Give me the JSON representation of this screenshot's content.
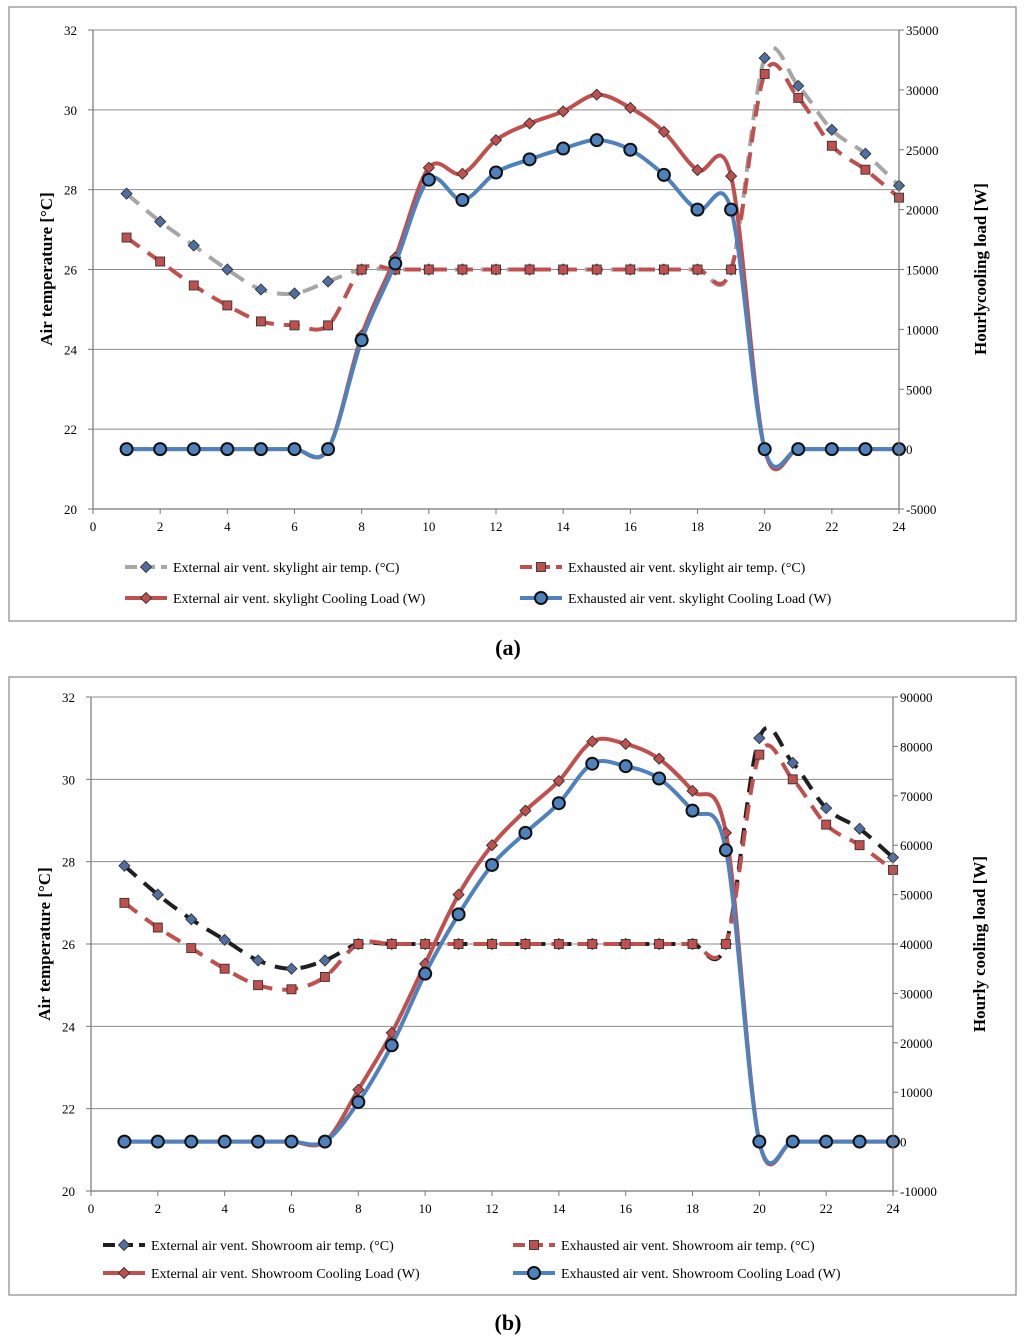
{
  "chart_data": [
    {
      "type": "line",
      "caption": "(a)",
      "ylabel": "Air temperature [°C]",
      "y2label": "Hourlycooling  load [W]",
      "xlim": [
        0,
        24
      ],
      "xticks": [
        0,
        2,
        4,
        6,
        8,
        10,
        12,
        14,
        16,
        18,
        20,
        22,
        24
      ],
      "ylim": [
        20,
        32
      ],
      "yticks": [
        20,
        22,
        24,
        26,
        28,
        30,
        32
      ],
      "y2lim": [
        -5000,
        35000
      ],
      "y2ticks": [
        -5000,
        0,
        5000,
        10000,
        15000,
        20000,
        25000,
        30000,
        35000
      ],
      "grid": "horizontal",
      "legend_position": "bottom",
      "x": [
        1,
        2,
        3,
        4,
        5,
        6,
        7,
        8,
        9,
        10,
        11,
        12,
        13,
        14,
        15,
        16,
        17,
        18,
        19,
        20,
        21,
        22,
        23,
        24
      ],
      "series": [
        {
          "name": "External air vent. skylight air temp. (°C)",
          "axis": "left",
          "color": "#a6a6a6",
          "marker": "diamond",
          "marker_color": "#4f6fa3",
          "dash": true,
          "values": [
            27.9,
            27.2,
            26.6,
            26.0,
            25.5,
            25.4,
            25.7,
            26.0,
            26.0,
            26.0,
            26.0,
            26.0,
            26.0,
            26.0,
            26.0,
            26.0,
            26.0,
            26.0,
            26.0,
            31.3,
            30.6,
            29.5,
            28.9,
            28.1
          ]
        },
        {
          "name": "Exhausted air vent. skylight air temp. (°C)",
          "axis": "left",
          "color": "#c0504d",
          "marker": "square",
          "marker_color": "#c0504d",
          "dash": true,
          "values": [
            26.8,
            26.2,
            25.6,
            25.1,
            24.7,
            24.6,
            24.6,
            26.0,
            26.0,
            26.0,
            26.0,
            26.0,
            26.0,
            26.0,
            26.0,
            26.0,
            26.0,
            26.0,
            26.0,
            30.9,
            30.3,
            29.1,
            28.5,
            27.8
          ]
        },
        {
          "name": "External air vent. skylight Cooling Load (W)",
          "axis": "right",
          "color": "#c0504d",
          "marker": "diamond",
          "marker_color": "#c0504d",
          "dash": false,
          "values": [
            0,
            0,
            0,
            0,
            0,
            0,
            0,
            9500,
            16000,
            23500,
            23000,
            25800,
            27200,
            28200,
            29600,
            28500,
            26500,
            23300,
            22800,
            0,
            0,
            0,
            0,
            0
          ]
        },
        {
          "name": "Exhausted air vent. skylight Cooling Load (W)",
          "axis": "right",
          "color": "#4f81bd",
          "marker": "circle",
          "marker_color": "#4f81bd",
          "dash": false,
          "values": [
            0,
            0,
            0,
            0,
            0,
            0,
            0,
            9100,
            15500,
            22500,
            20800,
            23100,
            24200,
            25100,
            25800,
            25000,
            22900,
            20000,
            20000,
            0,
            0,
            0,
            0,
            0
          ]
        }
      ]
    },
    {
      "type": "line",
      "caption": "(b)",
      "ylabel": "Air temperature [°C]",
      "y2label": "Hourly cooling load [W]",
      "xlim": [
        0,
        24
      ],
      "xticks": [
        0,
        2,
        4,
        6,
        8,
        10,
        12,
        14,
        16,
        18,
        20,
        22,
        24
      ],
      "ylim": [
        20,
        32
      ],
      "yticks": [
        20,
        22,
        24,
        26,
        28,
        30,
        32
      ],
      "y2lim": [
        -10000,
        90000
      ],
      "y2ticks": [
        -10000,
        0,
        10000,
        20000,
        30000,
        40000,
        50000,
        60000,
        70000,
        80000,
        90000
      ],
      "grid": "horizontal",
      "legend_position": "bottom",
      "x": [
        1,
        2,
        3,
        4,
        5,
        6,
        7,
        8,
        9,
        10,
        11,
        12,
        13,
        14,
        15,
        16,
        17,
        18,
        19,
        20,
        21,
        22,
        23,
        24
      ],
      "series": [
        {
          "name": "External air vent. Showroom air temp. (°C)",
          "axis": "left",
          "color": "#1f1f1f",
          "marker": "diamond",
          "marker_color": "#4f6fa3",
          "dash": true,
          "values": [
            27.9,
            27.2,
            26.6,
            26.1,
            25.6,
            25.4,
            25.6,
            26.0,
            26.0,
            26.0,
            26.0,
            26.0,
            26.0,
            26.0,
            26.0,
            26.0,
            26.0,
            26.0,
            26.0,
            31.0,
            30.4,
            29.3,
            28.8,
            28.1
          ]
        },
        {
          "name": "Exhausted air vent. Showroom air temp. (°C)",
          "axis": "left",
          "color": "#c0504d",
          "marker": "square",
          "marker_color": "#c0504d",
          "dash": true,
          "values": [
            27.0,
            26.4,
            25.9,
            25.4,
            25.0,
            24.9,
            25.2,
            26.0,
            26.0,
            26.0,
            26.0,
            26.0,
            26.0,
            26.0,
            26.0,
            26.0,
            26.0,
            26.0,
            26.0,
            30.6,
            30.0,
            28.9,
            28.4,
            27.8
          ]
        },
        {
          "name": "External air vent. Showroom Cooling Load (W)",
          "axis": "right",
          "color": "#c0504d",
          "marker": "diamond",
          "marker_color": "#c0504d",
          "dash": false,
          "values": [
            0,
            0,
            0,
            0,
            0,
            0,
            0,
            10500,
            22000,
            36000,
            50000,
            60000,
            67000,
            73000,
            81000,
            80500,
            77500,
            71000,
            62500,
            0,
            0,
            0,
            0,
            0
          ]
        },
        {
          "name": "Exhausted air vent. Showroom Cooling Load (W)",
          "axis": "right",
          "color": "#4f81bd",
          "marker": "circle",
          "marker_color": "#4f81bd",
          "dash": false,
          "values": [
            0,
            0,
            0,
            0,
            0,
            0,
            0,
            8000,
            19500,
            34000,
            46000,
            56000,
            62500,
            68500,
            76500,
            76000,
            73500,
            67000,
            59000,
            0,
            0,
            0,
            0,
            0
          ]
        }
      ]
    }
  ]
}
